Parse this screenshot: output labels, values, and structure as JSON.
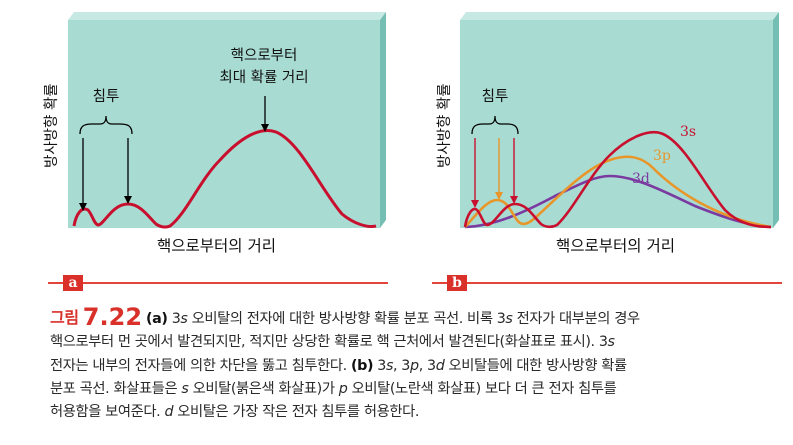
{
  "panel_a": {
    "ylabel": "방사방향 확률",
    "xlabel": "핵으로부터의 거리",
    "penetration_label": "침투",
    "max_label_line1": "핵으로부터",
    "max_label_line2": "최대 확률 거리",
    "tag": "a"
  },
  "panel_b": {
    "ylabel": "방사방향 확률",
    "xlabel": "핵으로부터의 거리",
    "penetration_label": "침투",
    "orbital_3s": "3s",
    "orbital_3p": "3p",
    "orbital_3d": "3d",
    "tag": "b"
  },
  "colors": {
    "background": "#a8dcd3",
    "side": "#74beb4",
    "top": "#c6e9e3",
    "s_curve": "#c8102e",
    "p_curve": "#e8962a",
    "d_curve": "#7a3aa0",
    "accent": "#d9302a"
  },
  "caption": {
    "label": "그림",
    "number": "7.22",
    "l1_a": "(a)",
    "l1_t1": " 3",
    "l1_s": "s",
    "l1_t2": " 오비탈의 전자에 대한 방사방향 확률 분포 곡선. 비록 3",
    "l1_s2": "s",
    "l1_t3": " 전자가 대부분의 경우",
    "l2": "핵으로부터 먼 곳에서 발견되지만, 적지만 상당한 확률로 핵 근처에서 발견된다(화살표로 표시). 3",
    "l2_s": "s",
    "l3_t1": "전자는 내부의 전자들에 의한 차단을 뚫고 침투한다. ",
    "l3_b": "(b)",
    "l3_t2": " 3",
    "l3_s": "s",
    "l3_t3": ", 3",
    "l3_p": "p",
    "l3_t4": ", 3",
    "l3_d": "d",
    "l3_t5": " 오비탈들에 대한 방사방향 확률",
    "l4_t1": "분포 곡선. 화살표들은 ",
    "l4_s": "s",
    "l4_t2": " 오비탈(붉은색 화살표)가 ",
    "l4_p": "p",
    "l4_t3": " 오비탈(노란색 화살표) 보다 더 큰 전자 침투를",
    "l5_t1": "허용함을 보여준다. ",
    "l5_d": "d",
    "l5_t2": " 오비탈은 가장 작은 전자 침투를 허용한다."
  }
}
